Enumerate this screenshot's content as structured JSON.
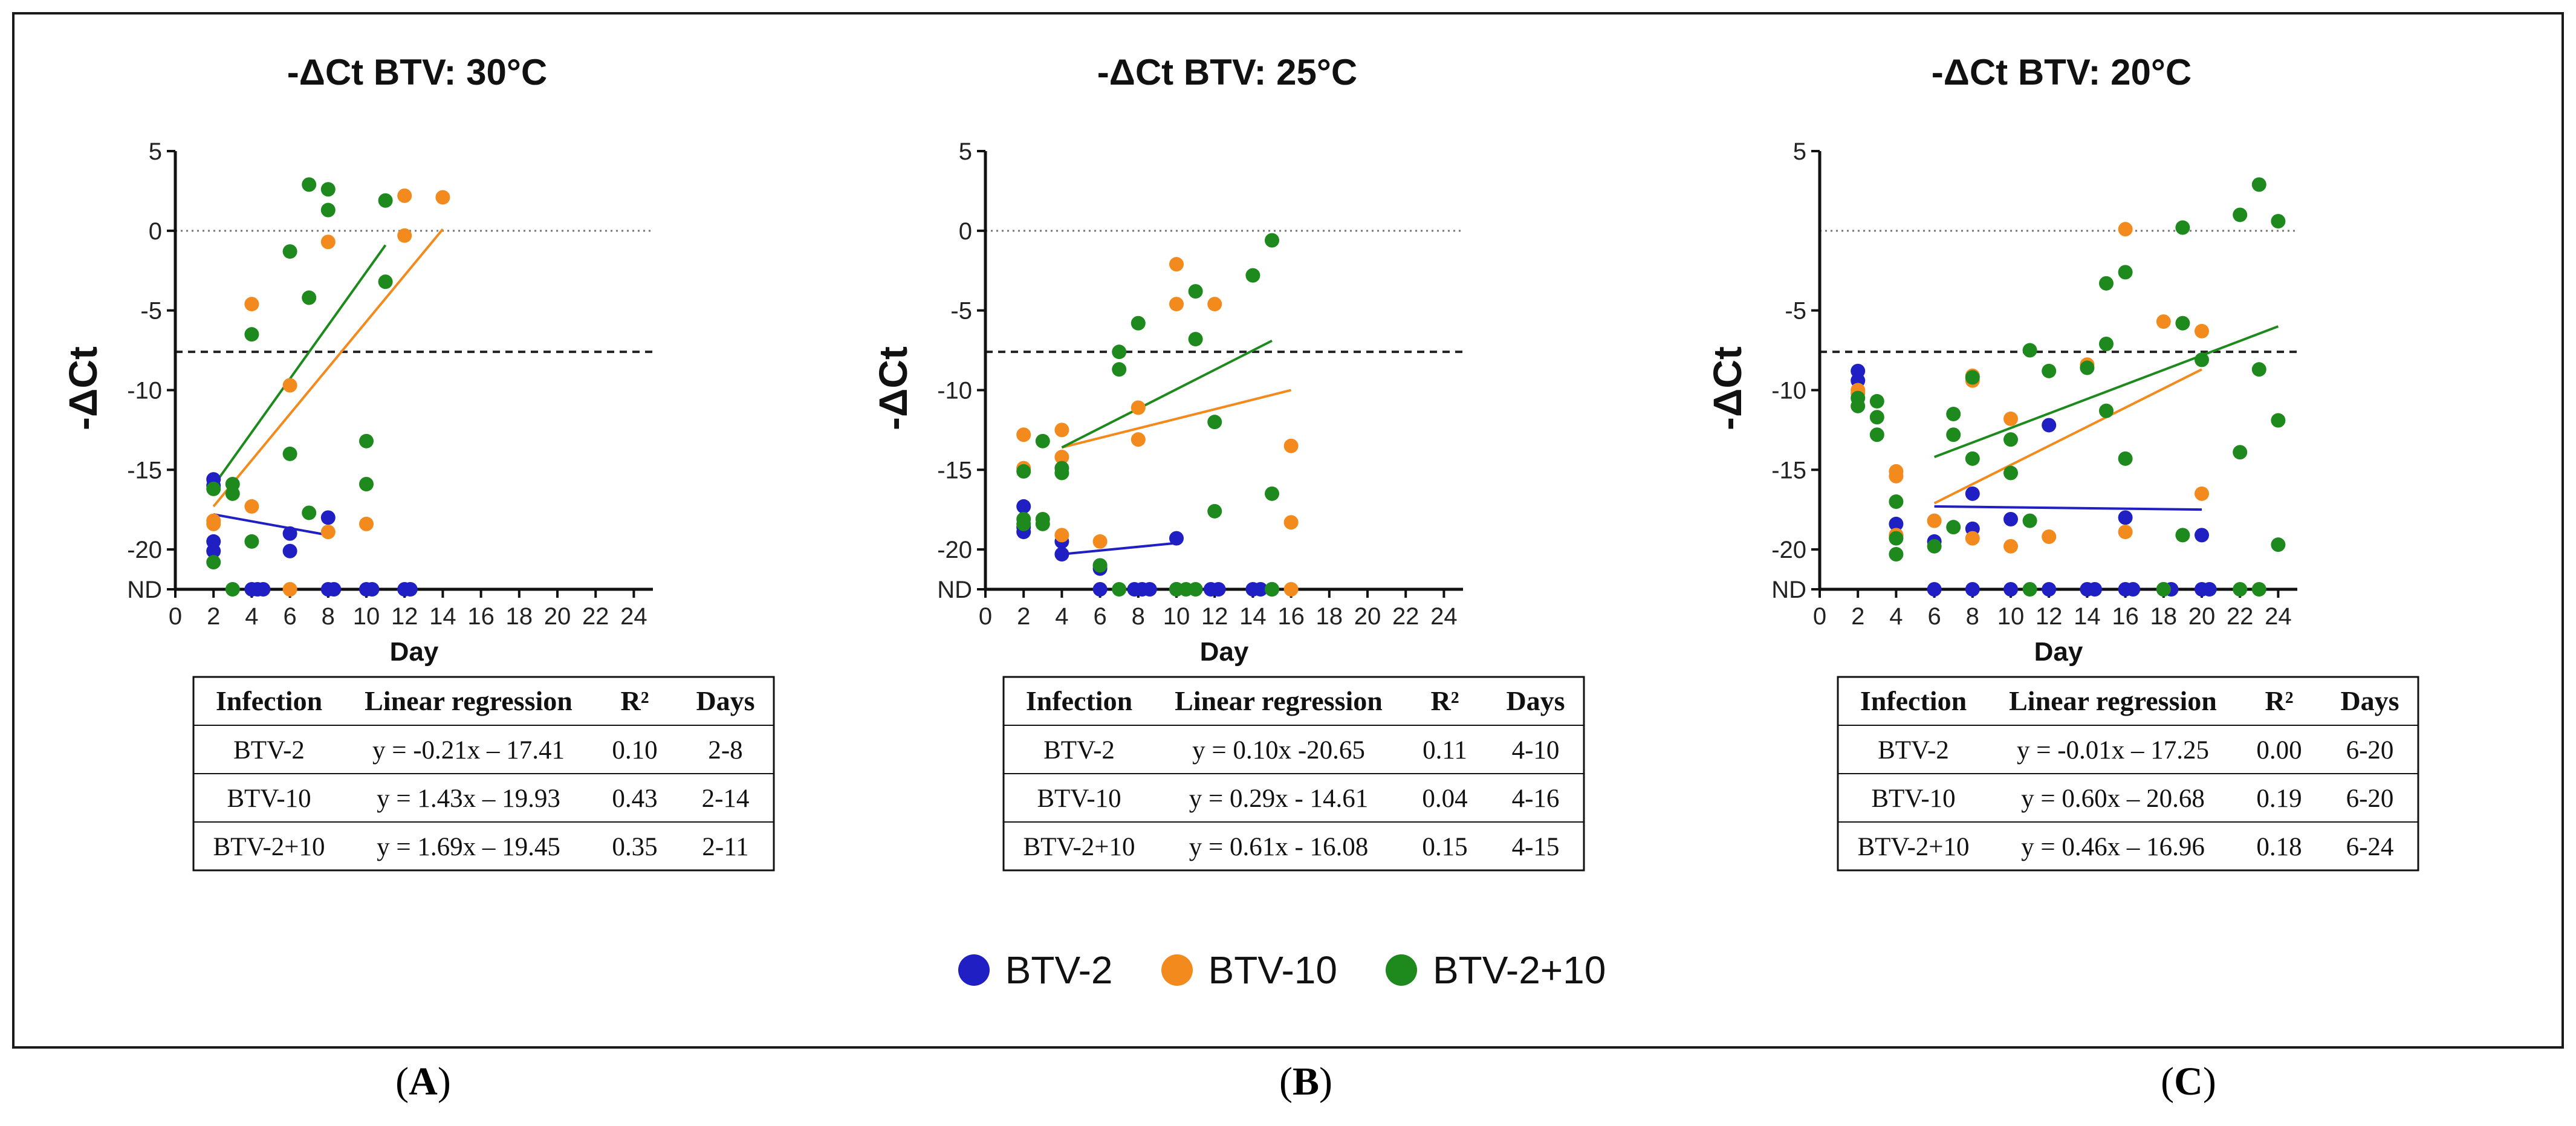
{
  "panels": [
    {
      "caption_open": "(",
      "caption_letter": "A",
      "caption_close": ")",
      "table": {
        "headers": [
          "Infection",
          "Linear regression",
          "R²",
          "Days"
        ],
        "rows": [
          [
            "BTV-2",
            "y = -0.21x – 17.41",
            "0.10",
            "2-8"
          ],
          [
            "BTV-10",
            "y = 1.43x – 19.93",
            "0.43",
            "2-14"
          ],
          [
            "BTV-2+10",
            "y = 1.69x – 19.45",
            "0.35",
            "2-11"
          ]
        ]
      }
    },
    {
      "caption_open": "(",
      "caption_letter": "B",
      "caption_close": ")",
      "table": {
        "headers": [
          "Infection",
          "Linear regression",
          "R²",
          "Days"
        ],
        "rows": [
          [
            "BTV-2",
            "y = 0.10x -20.65",
            "0.11",
            "4-10"
          ],
          [
            "BTV-10",
            "y = 0.29x - 14.61",
            "0.04",
            "4-16"
          ],
          [
            "BTV-2+10",
            "y = 0.61x - 16.08",
            "0.15",
            "4-15"
          ]
        ]
      }
    },
    {
      "caption_open": "(",
      "caption_letter": "C",
      "caption_close": ")",
      "table": {
        "headers": [
          "Infection",
          "Linear regression",
          "R²",
          "Days"
        ],
        "rows": [
          [
            "BTV-2",
            "y = -0.01x – 17.25",
            "0.00",
            "6-20"
          ],
          [
            "BTV-10",
            "y = 0.60x – 20.68",
            "0.19",
            "6-20"
          ],
          [
            "BTV-2+10",
            "y = 0.46x – 16.96",
            "0.18",
            "6-24"
          ]
        ]
      }
    }
  ],
  "legend": [
    {
      "label": "BTV-2",
      "color": "#1f1fc4"
    },
    {
      "label": "BTV-10",
      "color": "#f28a1e"
    },
    {
      "label": "BTV-2+10",
      "color": "#1e8a1e"
    }
  ],
  "chart_data": [
    {
      "type": "scatter",
      "title": "-ΔCt BTV: 30°C",
      "xlabel": "Day",
      "ylabel": "-ΔCt",
      "xlim": [
        0,
        25
      ],
      "ylim": [
        -22.5,
        5
      ],
      "nd_label": "ND",
      "nd_value": -22.5,
      "x_ticks": [
        0,
        2,
        4,
        6,
        8,
        10,
        12,
        14,
        16,
        18,
        20,
        22,
        24
      ],
      "y_ticks": [
        5,
        0,
        -5,
        -10,
        -15,
        -20
      ],
      "dotted_reference_y": 0,
      "dashed_reference_y": -7.6,
      "series": [
        {
          "name": "BTV-2",
          "color": "#1f1fc4",
          "points": [
            [
              2,
              -15.6
            ],
            [
              2,
              -16
            ],
            [
              2,
              -19.5
            ],
            [
              2,
              -20.1
            ],
            [
              4,
              -22.5
            ],
            [
              4.3,
              -22.5
            ],
            [
              4.6,
              -22.5
            ],
            [
              6,
              -19
            ],
            [
              6,
              -20.1
            ],
            [
              8,
              -18
            ],
            [
              8,
              -22.5
            ],
            [
              8.3,
              -22.5
            ],
            [
              10,
              -22.5
            ],
            [
              10.3,
              -22.5
            ],
            [
              12,
              -22.5
            ],
            [
              12.3,
              -22.5
            ]
          ],
          "fit": {
            "x": [
              2,
              8
            ],
            "y": [
              -17.8,
              -19.1
            ]
          }
        },
        {
          "name": "BTV-10",
          "color": "#f28a1e",
          "points": [
            [
              2,
              -18.2
            ],
            [
              2,
              -18.4
            ],
            [
              4,
              -4.6
            ],
            [
              4,
              -17.3
            ],
            [
              6,
              -9.7
            ],
            [
              6,
              -22.5
            ],
            [
              8,
              -0.7
            ],
            [
              8,
              -18.9
            ],
            [
              10,
              -18.4
            ],
            [
              12,
              2.2
            ],
            [
              12,
              -0.3
            ],
            [
              14,
              2.1
            ]
          ],
          "fit": {
            "x": [
              2,
              14
            ],
            "y": [
              -17.3,
              0.1
            ]
          }
        },
        {
          "name": "BTV-2+10",
          "color": "#1e8a1e",
          "points": [
            [
              2,
              -16.2
            ],
            [
              2,
              -20.8
            ],
            [
              3,
              -15.9
            ],
            [
              3,
              -16.5
            ],
            [
              3,
              -22.5
            ],
            [
              4,
              -6.5
            ],
            [
              4,
              -19.5
            ],
            [
              6,
              -1.3
            ],
            [
              6,
              -14
            ],
            [
              7,
              2.9
            ],
            [
              7,
              -4.2
            ],
            [
              7,
              -17.7
            ],
            [
              8,
              2.6
            ],
            [
              8,
              1.3
            ],
            [
              10,
              -13.2
            ],
            [
              10,
              -15.9
            ],
            [
              11,
              1.9
            ],
            [
              11,
              -3.2
            ]
          ],
          "fit": {
            "x": [
              2,
              11
            ],
            "y": [
              -16.0,
              -0.9
            ]
          }
        }
      ]
    },
    {
      "type": "scatter",
      "title": "-ΔCt BTV: 25°C",
      "xlabel": "Day",
      "ylabel": "-ΔCt",
      "xlim": [
        0,
        25
      ],
      "ylim": [
        -22.5,
        5
      ],
      "nd_label": "ND",
      "nd_value": -22.5,
      "x_ticks": [
        0,
        2,
        4,
        6,
        8,
        10,
        12,
        14,
        16,
        18,
        20,
        22,
        24
      ],
      "y_ticks": [
        5,
        0,
        -5,
        -10,
        -15,
        -20
      ],
      "dotted_reference_y": 0,
      "dashed_reference_y": -7.6,
      "series": [
        {
          "name": "BTV-2",
          "color": "#1f1fc4",
          "points": [
            [
              2,
              -17.3
            ],
            [
              2,
              -18.6
            ],
            [
              2,
              -18.9
            ],
            [
              4,
              -19.5
            ],
            [
              4,
              -20.3
            ],
            [
              6,
              -21
            ],
            [
              6,
              -21.2
            ],
            [
              6,
              -22.5
            ],
            [
              7.8,
              -22.5
            ],
            [
              8.2,
              -22.5
            ],
            [
              8.6,
              -22.5
            ],
            [
              10,
              -19.3
            ],
            [
              10,
              -22.5
            ],
            [
              11.8,
              -22.5
            ],
            [
              12.2,
              -22.5
            ],
            [
              14,
              -22.5
            ],
            [
              14.4,
              -22.5
            ],
            [
              15,
              -22.5
            ]
          ],
          "fit": {
            "x": [
              4,
              10
            ],
            "y": [
              -20.3,
              -19.6
            ]
          }
        },
        {
          "name": "BTV-10",
          "color": "#f28a1e",
          "points": [
            [
              2,
              -12.8
            ],
            [
              2,
              -14.9
            ],
            [
              4,
              -12.5
            ],
            [
              4,
              -14.2
            ],
            [
              4,
              -19.1
            ],
            [
              6,
              -19.5
            ],
            [
              8,
              -11.1
            ],
            [
              8,
              -13.1
            ],
            [
              10,
              -2.1
            ],
            [
              10,
              -4.6
            ],
            [
              12,
              -4.6
            ],
            [
              16,
              -13.5
            ],
            [
              16,
              -18.3
            ],
            [
              16,
              -22.5
            ]
          ],
          "fit": {
            "x": [
              4,
              16
            ],
            "y": [
              -13.6,
              -10.0
            ]
          }
        },
        {
          "name": "BTV-2+10",
          "color": "#1e8a1e",
          "points": [
            [
              2,
              -15.1
            ],
            [
              2,
              -18.1
            ],
            [
              2,
              -18.4
            ],
            [
              3,
              -13.2
            ],
            [
              3,
              -18.1
            ],
            [
              3,
              -18.4
            ],
            [
              4,
              -14.9
            ],
            [
              4,
              -15.2
            ],
            [
              6,
              -21
            ],
            [
              7,
              -7.6
            ],
            [
              7,
              -8.7
            ],
            [
              7,
              -22.5
            ],
            [
              8,
              -5.8
            ],
            [
              10,
              -22.5
            ],
            [
              10.5,
              -22.5
            ],
            [
              11,
              -3.8
            ],
            [
              11,
              -6.8
            ],
            [
              11,
              -22.5
            ],
            [
              12,
              -12
            ],
            [
              12,
              -17.6
            ],
            [
              14,
              -2.8
            ],
            [
              15,
              -0.6
            ],
            [
              15,
              -16.5
            ],
            [
              15,
              -22.5
            ]
          ],
          "fit": {
            "x": [
              4,
              15
            ],
            "y": [
              -13.6,
              -6.9
            ]
          }
        }
      ]
    },
    {
      "type": "scatter",
      "title": "-ΔCt BTV: 20°C",
      "xlabel": "Day",
      "ylabel": "-ΔCt",
      "xlim": [
        0,
        25
      ],
      "ylim": [
        -22.5,
        5
      ],
      "nd_label": "ND",
      "nd_value": -22.5,
      "x_ticks": [
        0,
        2,
        4,
        6,
        8,
        10,
        12,
        14,
        16,
        18,
        20,
        22,
        24
      ],
      "y_ticks": [
        5,
        -5,
        -10,
        -15,
        -20
      ],
      "dotted_reference_y": 0,
      "dashed_reference_y": -7.6,
      "series": [
        {
          "name": "BTV-2",
          "color": "#1f1fc4",
          "points": [
            [
              2,
              -8.8
            ],
            [
              2,
              -9.4
            ],
            [
              4,
              -18.4
            ],
            [
              4,
              -19.1
            ],
            [
              6,
              -19.5
            ],
            [
              6,
              -22.5
            ],
            [
              8,
              -16.5
            ],
            [
              8,
              -18.7
            ],
            [
              8,
              -22.5
            ],
            [
              10,
              -18.1
            ],
            [
              10,
              -22.5
            ],
            [
              12,
              -12.2
            ],
            [
              12,
              -22.5
            ],
            [
              14,
              -22.5
            ],
            [
              14.4,
              -22.5
            ],
            [
              16,
              -18
            ],
            [
              16,
              -22.5
            ],
            [
              16.4,
              -22.5
            ],
            [
              18,
              -22.5
            ],
            [
              18.4,
              -22.5
            ],
            [
              20,
              -19.1
            ],
            [
              20,
              -22.5
            ],
            [
              20.4,
              -22.5
            ]
          ],
          "fit": {
            "x": [
              6,
              20
            ],
            "y": [
              -17.3,
              -17.5
            ]
          }
        },
        {
          "name": "BTV-10",
          "color": "#f28a1e",
          "points": [
            [
              2,
              -10
            ],
            [
              2,
              -10.2
            ],
            [
              4,
              -15.1
            ],
            [
              4,
              -15.4
            ],
            [
              4,
              -19.1
            ],
            [
              6,
              -18.2
            ],
            [
              8,
              -9.1
            ],
            [
              8,
              -9.4
            ],
            [
              8,
              -19.3
            ],
            [
              10,
              -11.8
            ],
            [
              10,
              -19.8
            ],
            [
              12,
              -19.2
            ],
            [
              14,
              -8.4
            ],
            [
              16,
              0.1
            ],
            [
              16,
              -18.9
            ],
            [
              18,
              -5.7
            ],
            [
              18,
              -22.5
            ],
            [
              20,
              -6.3
            ],
            [
              20,
              -16.5
            ]
          ],
          "fit": {
            "x": [
              6,
              20
            ],
            "y": [
              -17.1,
              -8.7
            ]
          }
        },
        {
          "name": "BTV-2+10",
          "color": "#1e8a1e",
          "points": [
            [
              2,
              -10.5
            ],
            [
              2,
              -11
            ],
            [
              3,
              -10.7
            ],
            [
              3,
              -11.7
            ],
            [
              3,
              -12.8
            ],
            [
              4,
              -17
            ],
            [
              4,
              -19.3
            ],
            [
              4,
              -20.3
            ],
            [
              6,
              -19.8
            ],
            [
              7,
              -11.5
            ],
            [
              7,
              -12.8
            ],
            [
              7,
              -18.6
            ],
            [
              8,
              -9.2
            ],
            [
              8,
              -14.3
            ],
            [
              10,
              -13.1
            ],
            [
              10,
              -15.2
            ],
            [
              11,
              -7.5
            ],
            [
              11,
              -18.2
            ],
            [
              11,
              -22.5
            ],
            [
              12,
              -8.8
            ],
            [
              14,
              -8.6
            ],
            [
              15,
              -3.3
            ],
            [
              15,
              -7.1
            ],
            [
              15,
              -11.3
            ],
            [
              16,
              -2.6
            ],
            [
              16,
              -14.3
            ],
            [
              18,
              -22.5
            ],
            [
              19,
              0.2
            ],
            [
              19,
              -5.8
            ],
            [
              19,
              -19.1
            ],
            [
              20,
              -8.1
            ],
            [
              22,
              1
            ],
            [
              22,
              -13.9
            ],
            [
              22,
              -22.5
            ],
            [
              23,
              2.9
            ],
            [
              23,
              -8.7
            ],
            [
              23,
              -22.5
            ],
            [
              24,
              0.6
            ],
            [
              24,
              -11.9
            ],
            [
              24,
              -19.7
            ]
          ],
          "fit": {
            "x": [
              6,
              24
            ],
            "y": [
              -14.2,
              -6.0
            ]
          }
        }
      ]
    }
  ]
}
